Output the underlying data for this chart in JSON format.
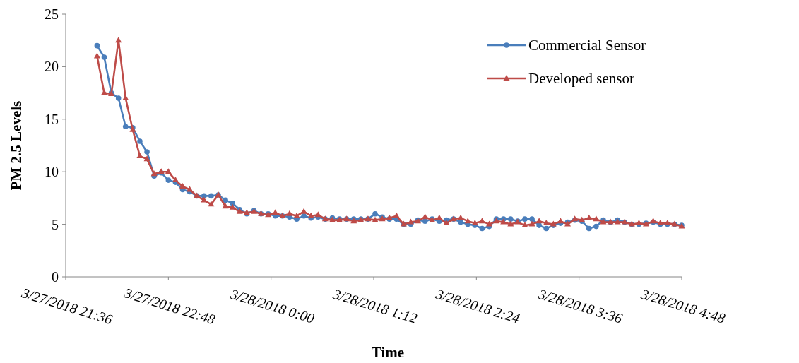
{
  "chart_data": {
    "type": "line",
    "xlabel": "Time",
    "ylabel": "PM 2.5 Levels",
    "x": [
      "2018-03-27T21:58",
      "2018-03-27T22:03",
      "2018-03-27T22:08",
      "2018-03-27T22:13",
      "2018-03-27T22:18",
      "2018-03-27T22:23",
      "2018-03-27T22:28",
      "2018-03-27T22:33",
      "2018-03-27T22:38",
      "2018-03-27T22:43",
      "2018-03-27T22:48",
      "2018-03-27T22:53",
      "2018-03-27T22:58",
      "2018-03-27T23:03",
      "2018-03-27T23:08",
      "2018-03-27T23:13",
      "2018-03-27T23:18",
      "2018-03-27T23:23",
      "2018-03-27T23:28",
      "2018-03-27T23:33",
      "2018-03-27T23:38",
      "2018-03-27T23:43",
      "2018-03-27T23:48",
      "2018-03-27T23:53",
      "2018-03-27T23:58",
      "2018-03-28T00:03",
      "2018-03-28T00:08",
      "2018-03-28T00:13",
      "2018-03-28T00:18",
      "2018-03-28T00:23",
      "2018-03-28T00:28",
      "2018-03-28T00:33",
      "2018-03-28T00:38",
      "2018-03-28T00:43",
      "2018-03-28T00:48",
      "2018-03-28T00:53",
      "2018-03-28T00:58",
      "2018-03-28T01:03",
      "2018-03-28T01:08",
      "2018-03-28T01:13",
      "2018-03-28T01:18",
      "2018-03-28T01:23",
      "2018-03-28T01:28",
      "2018-03-28T01:33",
      "2018-03-28T01:38",
      "2018-03-28T01:43",
      "2018-03-28T01:48",
      "2018-03-28T01:53",
      "2018-03-28T01:58",
      "2018-03-28T02:03",
      "2018-03-28T02:08",
      "2018-03-28T02:13",
      "2018-03-28T02:18",
      "2018-03-28T02:23",
      "2018-03-28T02:28",
      "2018-03-28T02:33",
      "2018-03-28T02:38",
      "2018-03-28T02:43",
      "2018-03-28T02:48",
      "2018-03-28T02:53",
      "2018-03-28T02:58",
      "2018-03-28T03:03",
      "2018-03-28T03:08",
      "2018-03-28T03:13",
      "2018-03-28T03:18",
      "2018-03-28T03:23",
      "2018-03-28T03:28",
      "2018-03-28T03:33",
      "2018-03-28T03:38",
      "2018-03-28T03:43",
      "2018-03-28T03:48",
      "2018-03-28T03:53",
      "2018-03-28T03:58",
      "2018-03-28T04:03",
      "2018-03-28T04:08",
      "2018-03-28T04:13",
      "2018-03-28T04:18",
      "2018-03-28T04:23",
      "2018-03-28T04:28",
      "2018-03-28T04:33",
      "2018-03-28T04:38",
      "2018-03-28T04:43",
      "2018-03-28T04:48"
    ],
    "series": [
      {
        "name": "Commercial Sensor",
        "color": "#4a7ebb",
        "marker": "circle",
        "values": [
          22.0,
          20.9,
          17.5,
          17.0,
          14.3,
          14.2,
          12.9,
          11.9,
          9.6,
          9.9,
          9.2,
          9.0,
          8.3,
          8.1,
          7.7,
          7.7,
          7.7,
          7.8,
          7.3,
          7.0,
          6.4,
          6.0,
          6.3,
          6.0,
          6.0,
          5.8,
          5.8,
          5.7,
          5.5,
          5.8,
          5.6,
          5.7,
          5.5,
          5.6,
          5.5,
          5.5,
          5.5,
          5.5,
          5.5,
          6.0,
          5.7,
          5.5,
          5.5,
          5.0,
          5.0,
          5.4,
          5.3,
          5.5,
          5.3,
          5.4,
          5.5,
          5.2,
          5.0,
          4.9,
          4.6,
          4.8,
          5.5,
          5.5,
          5.5,
          5.3,
          5.5,
          5.5,
          4.9,
          4.6,
          4.9,
          5.1,
          5.2,
          5.4,
          5.3,
          4.6,
          4.8,
          5.4,
          5.2,
          5.4,
          5.2,
          5.0,
          5.0,
          5.1,
          5.2,
          5.0,
          5.0,
          5.0,
          4.9
        ]
      },
      {
        "name": "Developed sensor",
        "color": "#be4b48",
        "marker": "triangle",
        "values": [
          21.0,
          17.5,
          17.4,
          22.5,
          17.0,
          14.0,
          11.5,
          11.2,
          9.8,
          10.0,
          10.0,
          9.2,
          8.6,
          8.3,
          7.7,
          7.3,
          6.9,
          7.8,
          6.7,
          6.6,
          6.2,
          6.1,
          6.2,
          6.0,
          5.9,
          6.1,
          5.8,
          6.0,
          5.8,
          6.2,
          5.8,
          5.9,
          5.5,
          5.4,
          5.4,
          5.5,
          5.3,
          5.4,
          5.5,
          5.4,
          5.5,
          5.6,
          5.8,
          5.0,
          5.2,
          5.3,
          5.7,
          5.4,
          5.6,
          5.1,
          5.5,
          5.6,
          5.3,
          5.1,
          5.3,
          5.0,
          5.3,
          5.2,
          5.0,
          5.2,
          4.9,
          5.0,
          5.3,
          5.1,
          5.0,
          5.3,
          5.0,
          5.5,
          5.4,
          5.6,
          5.5,
          5.2,
          5.2,
          5.2,
          5.2,
          5.0,
          5.1,
          5.0,
          5.3,
          5.1,
          5.1,
          5.0,
          4.8
        ]
      }
    ],
    "xlim": [
      "2018-03-27T21:36",
      "2018-03-28T04:48"
    ],
    "xticks": [
      {
        "value": "2018-03-27T21:36",
        "label": "3/27/2018 21:36"
      },
      {
        "value": "2018-03-27T22:48",
        "label": "3/27/2018 22:48"
      },
      {
        "value": "2018-03-28T00:00",
        "label": "3/28/2018 0:00"
      },
      {
        "value": "2018-03-28T01:12",
        "label": "3/28/2018 1:12"
      },
      {
        "value": "2018-03-28T02:24",
        "label": "3/28/2018 2:24"
      },
      {
        "value": "2018-03-28T03:36",
        "label": "3/28/2018 3:36"
      },
      {
        "value": "2018-03-28T04:48",
        "label": "3/28/2018 4:48"
      }
    ],
    "ylim": [
      0,
      25
    ],
    "yticks": [
      0,
      5,
      10,
      15,
      20,
      25
    ],
    "grid": false,
    "legend": "top right",
    "line_style": "solid"
  }
}
